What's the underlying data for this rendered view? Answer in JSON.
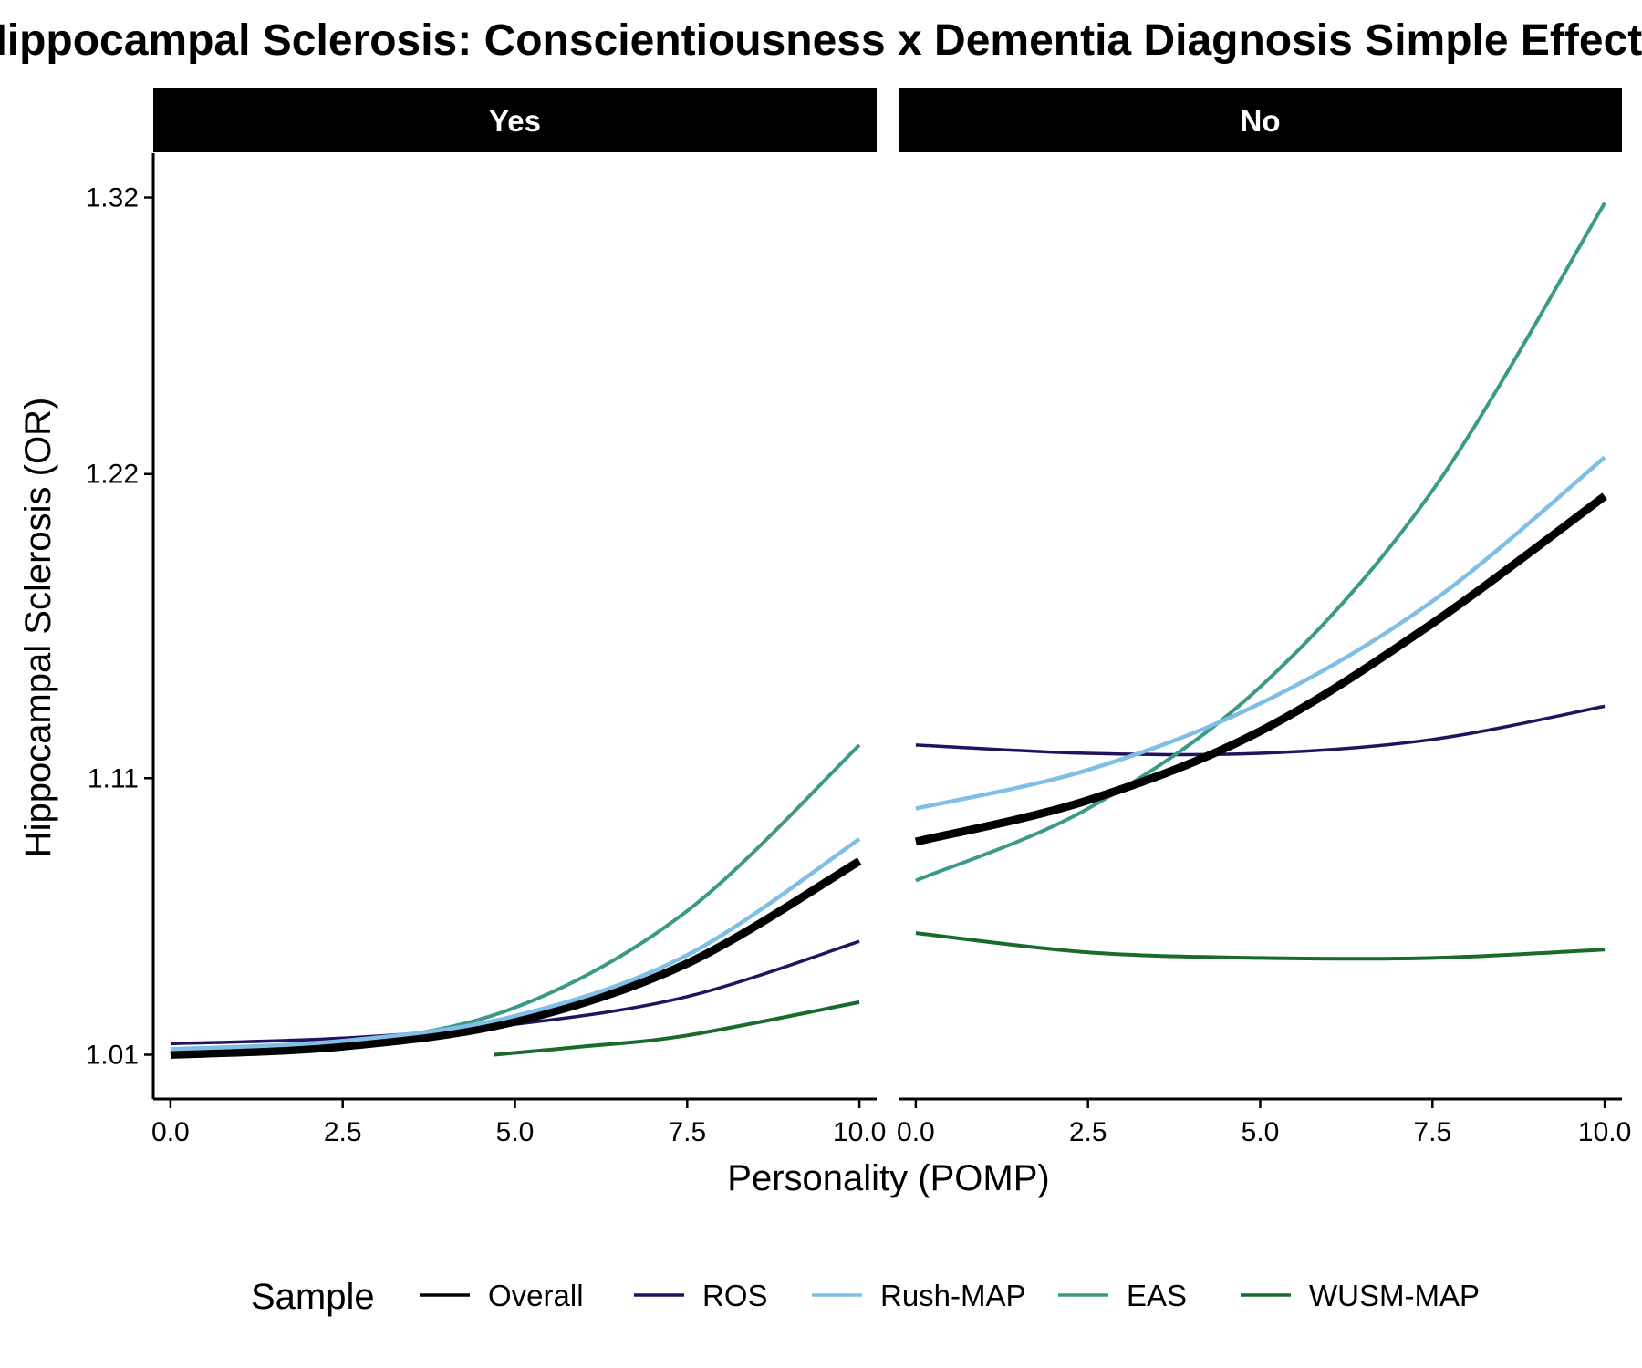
{
  "chart_data": {
    "type": "line",
    "title": "Hippocampal Sclerosis: Conscientiousness x Dementia Diagnosis Simple Effects",
    "xlabel": "Personality (POMP)",
    "ylabel": "Hippocampal Sclerosis (OR)",
    "x_ticks": [
      "0.0",
      "2.5",
      "5.0",
      "7.5",
      "10.0"
    ],
    "y_ticks": [
      "1.01",
      "1.11",
      "1.22",
      "1.32"
    ],
    "y_tick_values": [
      1.01,
      1.11,
      1.22,
      1.32
    ],
    "xlim": [
      -0.25,
      10.25
    ],
    "ylim": [
      0.994,
      1.336
    ],
    "legend_title": "Sample",
    "legend_position": "bottom",
    "panels": [
      {
        "label": "Yes",
        "series": [
          {
            "name": "Overall",
            "color": "#000000",
            "width": 9,
            "x": [
              0,
              2.5,
              5,
              7.5,
              10
            ],
            "y": [
              1.01,
              1.013,
              1.022,
              1.043,
              1.08
            ]
          },
          {
            "name": "ROS",
            "color": "#21135e",
            "width": 3.5,
            "x": [
              0,
              2.5,
              5,
              7.5,
              10
            ],
            "y": [
              1.014,
              1.016,
              1.021,
              1.031,
              1.051
            ]
          },
          {
            "name": "Rush-MAP",
            "color": "#7fbfe6",
            "width": 4.5,
            "x": [
              0,
              2.5,
              5,
              7.5,
              10
            ],
            "y": [
              1.012,
              1.015,
              1.024,
              1.046,
              1.088
            ]
          },
          {
            "name": "EAS",
            "color": "#3a9a86",
            "width": 4,
            "x": [
              0,
              2.5,
              5,
              7.5,
              10
            ],
            "y": [
              1.011,
              1.014,
              1.027,
              1.062,
              1.122
            ]
          },
          {
            "name": "WUSM-MAP",
            "color": "#1a6a2c",
            "width": 4,
            "x": [
              4.7,
              6,
              7.5,
              10
            ],
            "y": [
              1.01,
              1.013,
              1.017,
              1.029
            ]
          }
        ]
      },
      {
        "label": "No",
        "series": [
          {
            "name": "Overall",
            "color": "#000000",
            "width": 9,
            "x": [
              0,
              2.5,
              5,
              7.5,
              10
            ],
            "y": [
              1.087,
              1.102,
              1.127,
              1.166,
              1.212
            ]
          },
          {
            "name": "ROS",
            "color": "#21135e",
            "width": 3.5,
            "x": [
              0,
              2.5,
              5,
              7.5,
              10
            ],
            "y": [
              1.122,
              1.119,
              1.119,
              1.124,
              1.136
            ]
          },
          {
            "name": "Rush-MAP",
            "color": "#7fbfe6",
            "width": 4.5,
            "x": [
              0,
              2.5,
              5,
              7.5,
              10
            ],
            "y": [
              1.099,
              1.113,
              1.137,
              1.174,
              1.226
            ]
          },
          {
            "name": "EAS",
            "color": "#3a9a86",
            "width": 4,
            "x": [
              0,
              2.5,
              5,
              7.5,
              10
            ],
            "y": [
              1.073,
              1.099,
              1.143,
              1.214,
              1.318
            ]
          },
          {
            "name": "WUSM-MAP",
            "color": "#1a6a2c",
            "width": 4,
            "x": [
              0,
              2.5,
              5,
              7.5,
              10
            ],
            "y": [
              1.054,
              1.047,
              1.045,
              1.045,
              1.048
            ]
          }
        ]
      }
    ],
    "legend": [
      {
        "name": "Overall",
        "color": "#000000"
      },
      {
        "name": "ROS",
        "color": "#21135e"
      },
      {
        "name": "Rush-MAP",
        "color": "#7fbfe6"
      },
      {
        "name": "EAS",
        "color": "#3a9a86"
      },
      {
        "name": "WUSM-MAP",
        "color": "#1a6a2c"
      }
    ]
  }
}
